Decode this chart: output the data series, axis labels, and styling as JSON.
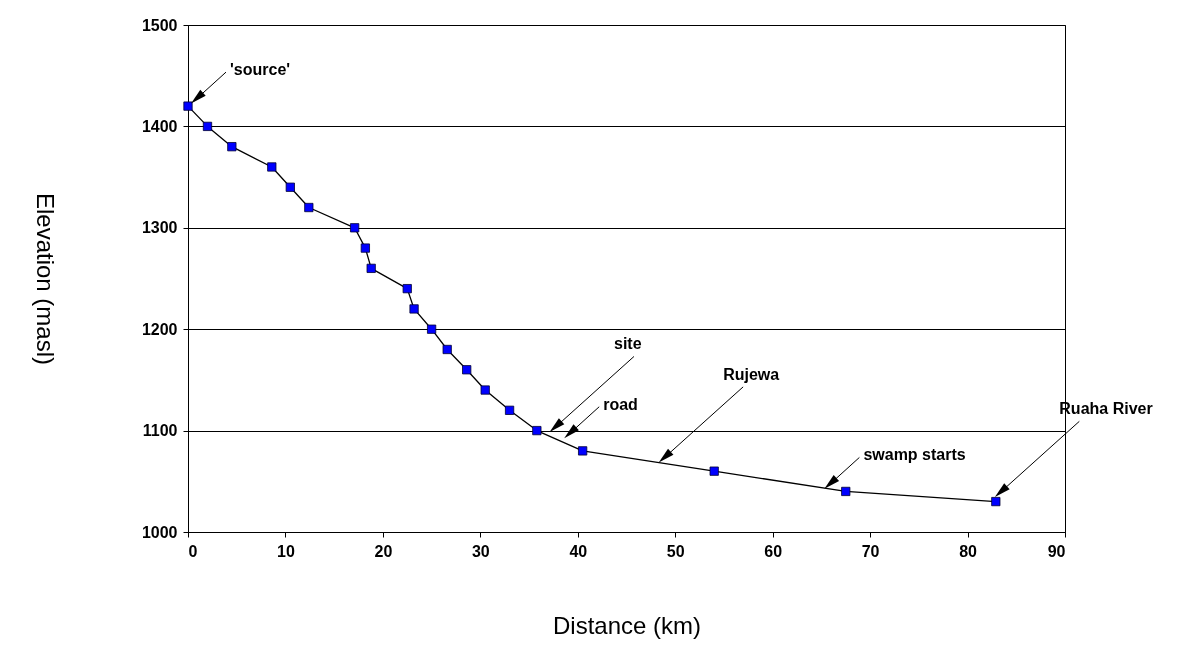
{
  "chart_data": {
    "type": "line",
    "xlabel": "Distance (km)",
    "ylabel": "Elevation (masl)",
    "x": [
      0,
      2,
      4.5,
      8.6,
      10.5,
      12.4,
      17.1,
      18.2,
      18.8,
      22.5,
      23.2,
      25,
      26.6,
      28.6,
      30.5,
      33,
      35.8,
      40.5,
      54,
      67.5,
      82.9
    ],
    "series": [
      {
        "color": "#0000ff",
        "values": [
          1420,
          1400,
          1380,
          1360,
          1340,
          1320,
          1300,
          1280,
          1260,
          1240,
          1220,
          1200,
          1180,
          1160,
          1140,
          1120,
          1100,
          1080,
          1060,
          1040,
          1030
        ]
      }
    ],
    "xlim": [
      0,
      90
    ],
    "xticks": [
      0,
      10,
      20,
      30,
      40,
      50,
      60,
      70,
      80,
      90
    ],
    "ylim": [
      1000,
      1500
    ],
    "yticks": [
      1000,
      1100,
      1200,
      1300,
      1400,
      1500
    ],
    "grid": "y",
    "marker": "square",
    "line_style": "solid",
    "annotations": [
      {
        "text": "'source'",
        "x": 0,
        "y": 1420
      },
      {
        "text": "site",
        "x": 36.8,
        "y": 1096
      },
      {
        "text": "road",
        "x": 38.3,
        "y": 1090
      },
      {
        "text": "Rujewa",
        "x": 48,
        "y": 1066
      },
      {
        "text": "swamp starts",
        "x": 65,
        "y": 1040
      },
      {
        "text": "Ruaha River",
        "x": 82.5,
        "y": 1032
      }
    ]
  }
}
